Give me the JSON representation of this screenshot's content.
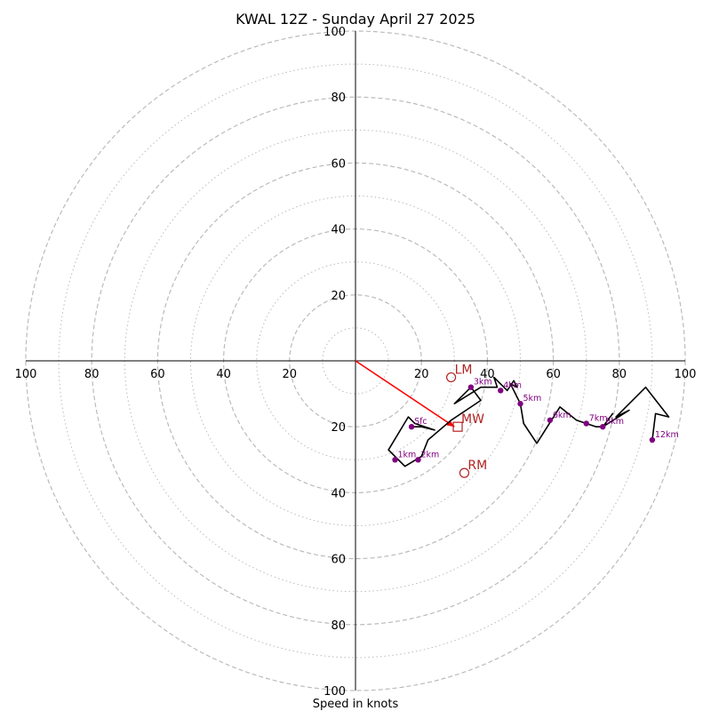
{
  "chart_data": {
    "type": "hodograph",
    "title": "KWAL 12Z - Sunday April 27 2025",
    "xlabel": "Speed in knots",
    "axis_range": [
      -100,
      100
    ],
    "axis_tick_labels": [
      "100",
      "80",
      "60",
      "40",
      "20",
      "20",
      "40",
      "60",
      "80",
      "100"
    ],
    "axis_tick_values": [
      -100,
      -80,
      -60,
      -40,
      -20,
      20,
      40,
      60,
      80,
      100
    ],
    "ring_speeds_major": [
      20,
      40,
      60,
      80,
      100
    ],
    "ring_speeds_minor": [
      10,
      30,
      50,
      70,
      90
    ],
    "trace": {
      "color": "#000000",
      "points": [
        [
          17,
          -20
        ],
        [
          20,
          -20
        ],
        [
          24,
          -21
        ],
        [
          18,
          -19
        ],
        [
          16,
          -17
        ],
        [
          10,
          -27
        ],
        [
          15,
          -32
        ],
        [
          20,
          -29
        ],
        [
          22,
          -24
        ],
        [
          29,
          -18
        ],
        [
          38,
          -12
        ],
        [
          35,
          -8
        ],
        [
          30,
          -13
        ],
        [
          38,
          -8
        ],
        [
          43,
          -8
        ],
        [
          42,
          -5
        ],
        [
          46,
          -9
        ],
        [
          48,
          -6
        ],
        [
          49,
          -8
        ],
        [
          47,
          -7
        ],
        [
          50,
          -13
        ],
        [
          51,
          -19
        ],
        [
          55,
          -25
        ],
        [
          62,
          -14
        ],
        [
          67,
          -18
        ],
        [
          70,
          -19
        ],
        [
          73,
          -20
        ],
        [
          75,
          -20
        ],
        [
          78,
          -16
        ],
        [
          75,
          -20
        ],
        [
          83,
          -15
        ],
        [
          79,
          -17
        ],
        [
          88,
          -8
        ],
        [
          95,
          -17
        ],
        [
          91,
          -16
        ],
        [
          90,
          -24
        ]
      ]
    },
    "height_markers": [
      {
        "label": "Sfc",
        "u": 17,
        "v": -20
      },
      {
        "label": "1km",
        "u": 12,
        "v": -30
      },
      {
        "label": "2km",
        "u": 19,
        "v": -30
      },
      {
        "label": "3km",
        "u": 35,
        "v": -8
      },
      {
        "label": "4km",
        "u": 44,
        "v": -9
      },
      {
        "label": "5km",
        "u": 50,
        "v": -13
      },
      {
        "label": "6km",
        "u": 59,
        "v": -18
      },
      {
        "label": "7km",
        "u": 70,
        "v": -19
      },
      {
        "label": "8km",
        "u": 75,
        "v": -20
      },
      {
        "label": "12km",
        "u": 90,
        "v": -24
      }
    ],
    "storm_markers": [
      {
        "label": "LM",
        "symbol": "circle",
        "u": 29,
        "v": -5
      },
      {
        "label": "MW",
        "symbol": "square",
        "u": 31,
        "v": -20
      },
      {
        "label": "RM",
        "symbol": "circle",
        "u": 33,
        "v": -34
      }
    ],
    "mean_wind_vector": {
      "from": [
        0,
        0
      ],
      "to": [
        30,
        -20
      ],
      "color": "#ff0000"
    },
    "marker_color": "#800080",
    "storm_color": "#b22222",
    "grid_color": "#bbbbbb"
  }
}
